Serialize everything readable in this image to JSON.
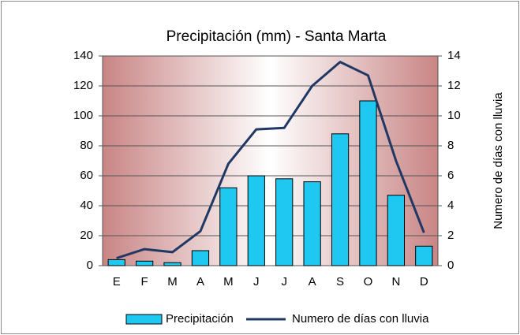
{
  "chart_data": {
    "type": "bar",
    "title": "Precipitación (mm) - Santa Marta",
    "y2_label": "Numero de días con lluvia",
    "categories": [
      "E",
      "F",
      "M",
      "A",
      "M",
      "J",
      "J",
      "A",
      "S",
      "O",
      "N",
      "D"
    ],
    "series": [
      {
        "name": "Precipitación",
        "type": "bar",
        "color": "#1ec8f0",
        "values": [
          4,
          3,
          2,
          10,
          52,
          60,
          58,
          56,
          88,
          110,
          47,
          13
        ]
      },
      {
        "name": "Numero de días con lluvia",
        "type": "line",
        "axis": "y2",
        "color": "#1f3864",
        "values": [
          0.5,
          1.1,
          0.9,
          2.3,
          6.8,
          9.1,
          9.2,
          12,
          13.6,
          12.7,
          7,
          2.2
        ]
      }
    ],
    "ylim": [
      0,
      140
    ],
    "yticks": [
      0,
      20,
      40,
      60,
      80,
      100,
      120,
      140
    ],
    "y2lim": [
      0,
      14
    ],
    "y2ticks": [
      0,
      2,
      4,
      6,
      8,
      10,
      12,
      14
    ],
    "grid": true,
    "legend": "bottom"
  }
}
